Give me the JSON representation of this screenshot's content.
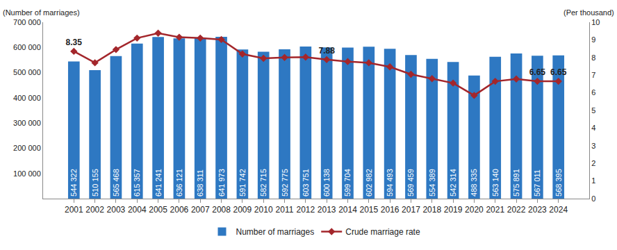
{
  "chart_data": {
    "type": "bar",
    "categories": [
      "2001",
      "2002",
      "2003",
      "2004",
      "2005",
      "2006",
      "2007",
      "2008",
      "2009",
      "2010",
      "2011",
      "2012",
      "2013",
      "2014",
      "2015",
      "2016",
      "2017",
      "2018",
      "2019",
      "2020",
      "2021",
      "2022",
      "2023",
      "2024"
    ],
    "y_label": "(Number of marriages)",
    "y2_label": "(Per thousand)",
    "ylim": [
      0,
      700000
    ],
    "yticks": [
      {
        "value": 100000,
        "label": "100 000"
      },
      {
        "value": 200000,
        "label": "200 000"
      },
      {
        "value": 300000,
        "label": "300 000"
      },
      {
        "value": 400000,
        "label": "400 000"
      },
      {
        "value": 500000,
        "label": "500 000"
      },
      {
        "value": 600000,
        "label": "600 000"
      },
      {
        "value": 700000,
        "label": "700 000"
      }
    ],
    "y2lim": [
      0,
      10
    ],
    "y2ticks": [
      0,
      1,
      2,
      3,
      4,
      5,
      6,
      7,
      8,
      9,
      10
    ],
    "grid": false,
    "legend": "bottom",
    "data_labels": true,
    "series": [
      {
        "name": "Number of marriages",
        "type": "bar",
        "color": "#2e78c2",
        "values": [
          544322,
          510155,
          565468,
          615357,
          641241,
          636121,
          638311,
          641973,
          591742,
          582715,
          592775,
          603751,
          600138,
          599704,
          602982,
          594493,
          569459,
          554389,
          542314,
          488335,
          563140,
          575891,
          567011,
          568395
        ],
        "value_labels": [
          "544 322",
          "510 155",
          "565 468",
          "615 357",
          "641 241",
          "636 121",
          "638 311",
          "641 973",
          "591 742",
          "582 715",
          "592 775",
          "603 751",
          "600 138",
          "599 704",
          "602 982",
          "594 493",
          "569 459",
          "554 389",
          "542 314",
          "488 335",
          "563 140",
          "575 891",
          "567 011",
          "568 395"
        ]
      },
      {
        "name": "Crude marriage rate",
        "type": "line",
        "axis": "y2",
        "color": "#a3262b",
        "marker": "diamond",
        "values": [
          8.35,
          7.7,
          8.45,
          9.1,
          9.38,
          9.15,
          9.1,
          9.02,
          8.2,
          7.95,
          8.0,
          8.02,
          7.88,
          7.77,
          7.7,
          7.47,
          7.05,
          6.8,
          6.55,
          5.85,
          6.65,
          6.78,
          6.65,
          6.65
        ],
        "value_labels": [
          "8.35",
          null,
          null,
          null,
          null,
          null,
          null,
          null,
          null,
          null,
          null,
          null,
          "7.88",
          null,
          null,
          null,
          null,
          null,
          null,
          null,
          null,
          null,
          "6.65",
          "6.65"
        ]
      }
    ]
  }
}
